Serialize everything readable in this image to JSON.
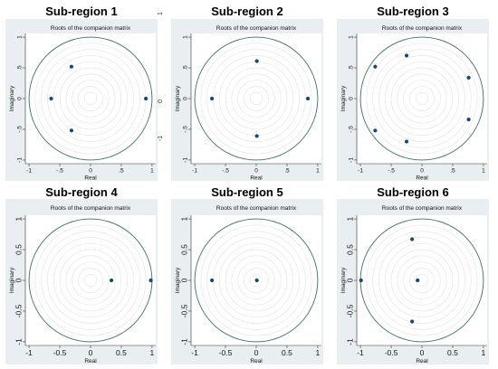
{
  "figure": {
    "edge_labels": [
      "1",
      "0",
      "-1"
    ]
  },
  "colors": {
    "page": "#ffffff",
    "graph_region": "#e9eff1",
    "plot_region": "#ffffff",
    "unit_circle": "#3a6f60",
    "grid": "#e2e2e2",
    "axis": "#333333",
    "points": "#1a476f"
  },
  "chart_data": [
    {
      "panel_title": "Sub-region 1",
      "type": "scatter",
      "title": "Roots of the companion matrix",
      "xlabel": "Real",
      "ylabel": "Imaginary",
      "xlim": [
        -1,
        1
      ],
      "ylim": [
        -1,
        1
      ],
      "xticks": [
        -1,
        -0.5,
        0,
        0.5,
        1
      ],
      "xtick_labels": [
        "-1",
        "-.5",
        "0",
        ".5",
        "1"
      ],
      "yticks": [
        -1,
        -0.5,
        0,
        0.5,
        1
      ],
      "ytick_labels": [
        "-1",
        "-.5",
        "0",
        ".5",
        "1"
      ],
      "unit_circle": true,
      "grid": true,
      "points": [
        {
          "x": -0.31,
          "y": 0.52
        },
        {
          "x": -0.64,
          "y": 0
        },
        {
          "x": -0.31,
          "y": -0.52
        },
        {
          "x": 0.9,
          "y": 0
        }
      ]
    },
    {
      "panel_title": "Sub-region 2",
      "type": "scatter",
      "title": "Roots of the companion matrix",
      "xlabel": "Real",
      "ylabel": "Imaginary",
      "xlim": [
        -1,
        1
      ],
      "ylim": [
        -1,
        1
      ],
      "xticks": [
        -1,
        -0.5,
        0,
        0.5,
        1
      ],
      "xtick_labels": [
        "-1",
        "-.5",
        "0",
        ".5",
        "1"
      ],
      "yticks": [
        -1,
        -0.5,
        0,
        0.5,
        1
      ],
      "ytick_labels": [
        "-1",
        "-.5",
        "0",
        ".5",
        "1"
      ],
      "unit_circle": true,
      "grid": true,
      "points": [
        {
          "x": -0.72,
          "y": 0
        },
        {
          "x": 0.01,
          "y": 0.61
        },
        {
          "x": 0.01,
          "y": -0.61
        },
        {
          "x": 0.84,
          "y": 0
        }
      ]
    },
    {
      "panel_title": "Sub-region 3",
      "type": "scatter",
      "title": "Roots of the companion matrix",
      "xlabel": "Real",
      "ylabel": "Imaginary",
      "xlim": [
        -1,
        1
      ],
      "ylim": [
        -1,
        1
      ],
      "xticks": [
        -1,
        -0.5,
        0,
        0.5,
        1
      ],
      "xtick_labels": [
        "-1",
        "-.5",
        "0",
        ".5",
        "1"
      ],
      "yticks": [
        -1,
        -0.5,
        0,
        0.5,
        1
      ],
      "ytick_labels": [
        "-1",
        "-.5",
        "0",
        ".5",
        "1"
      ],
      "unit_circle": true,
      "grid": true,
      "points": [
        {
          "x": -0.76,
          "y": 0.52
        },
        {
          "x": -0.25,
          "y": 0.7
        },
        {
          "x": 0.76,
          "y": 0.34
        },
        {
          "x": 0.76,
          "y": -0.34
        },
        {
          "x": -0.25,
          "y": -0.7
        },
        {
          "x": -0.76,
          "y": -0.52
        }
      ]
    },
    {
      "panel_title": "Sub-region 4",
      "type": "scatter",
      "title": "Roots of the companion matrix",
      "xlabel": "Real",
      "ylabel": "Imaginary",
      "xlim": [
        -1,
        1
      ],
      "ylim": [
        -1,
        1
      ],
      "xticks": [
        -1,
        -0.5,
        0,
        0.5,
        1
      ],
      "xtick_labels": [
        "-1",
        "-0.5",
        "0",
        "0.5",
        "1"
      ],
      "yticks": [
        -1,
        -0.5,
        0,
        0.5,
        1
      ],
      "ytick_labels": [
        "-1",
        "-0.5",
        "0",
        "0.5",
        "1"
      ],
      "unit_circle": true,
      "grid": true,
      "points": [
        {
          "x": 0.34,
          "y": 0
        },
        {
          "x": 0.98,
          "y": 0
        }
      ]
    },
    {
      "panel_title": "Sub-region 5",
      "type": "scatter",
      "title": "Roots of the companion matrix",
      "xlabel": "Real",
      "ylabel": "Imaginary",
      "xlim": [
        -1,
        1
      ],
      "ylim": [
        -1,
        1
      ],
      "xticks": [
        -1,
        -0.5,
        0,
        0.5,
        1
      ],
      "xtick_labels": [
        "-1",
        "-0.5",
        "0",
        "0.5",
        "1"
      ],
      "yticks": [
        -1,
        -0.5,
        0,
        0.5,
        1
      ],
      "ytick_labels": [
        "-1",
        "-0.5",
        "0",
        "0.5",
        "1"
      ],
      "unit_circle": true,
      "grid": true,
      "points": [
        {
          "x": -0.72,
          "y": 0
        },
        {
          "x": 0.01,
          "y": 0
        }
      ]
    },
    {
      "panel_title": "Sub-region 6",
      "type": "scatter",
      "title": "Roots of the companion matrix",
      "xlabel": "Real",
      "ylabel": "Imaginary",
      "xlim": [
        -1,
        1
      ],
      "ylim": [
        -1,
        1
      ],
      "xticks": [
        -1,
        -0.5,
        0,
        0.5,
        1
      ],
      "xtick_labels": [
        "-1",
        "-0.5",
        "0",
        "0.5",
        "1"
      ],
      "yticks": [
        -1,
        -0.5,
        0,
        0.5,
        1
      ],
      "ytick_labels": [
        "-1",
        "-0.5",
        "0",
        "0.5",
        "1"
      ],
      "unit_circle": true,
      "grid": true,
      "points": [
        {
          "x": -0.99,
          "y": 0
        },
        {
          "x": -0.16,
          "y": 0.67
        },
        {
          "x": -0.07,
          "y": 0
        },
        {
          "x": -0.16,
          "y": -0.67
        }
      ]
    }
  ]
}
